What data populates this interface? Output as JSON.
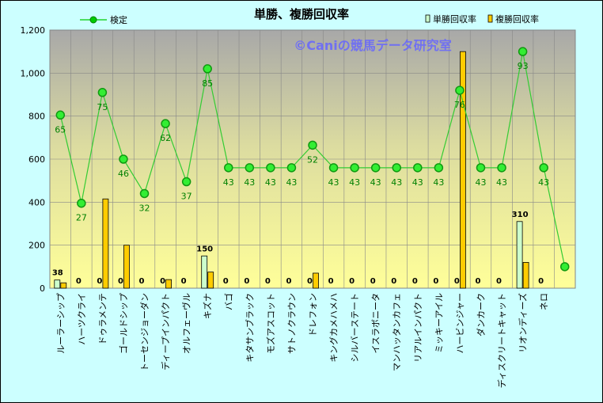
{
  "chart_data": {
    "type": "bar",
    "title": "単勝、複勝回収率",
    "watermark": "©Caniの競馬データ研究室",
    "ylim": [
      0,
      1200
    ],
    "yticks": [
      "0",
      "200",
      "400",
      "600",
      "800",
      "1,000",
      "1,200"
    ],
    "ytick_values": [
      0,
      200,
      400,
      600,
      800,
      1000,
      1200
    ],
    "grid": true,
    "legend_position": "top",
    "categories": [
      "ルーラーシップ",
      "ハーツクライ",
      "ドゥラメンテ",
      "ゴールドシップ",
      "トーセンジョーダン",
      "ディープインパクト",
      "オルフェーヴル",
      "キズナ",
      "バゴ",
      "キタサンブラック",
      "モズアスコット",
      "サトノクラウン",
      "ドレフォン",
      "キングカメハメハ",
      "シルバーステート",
      "イスラボニータ",
      "マンハッタンカフェ",
      "リアルインパクト",
      "ミッキーアイル",
      "ハービンジャー",
      "ダンカーク",
      "ディスクリートキャット",
      "リオンディーズ",
      "ネロ",
      ""
    ],
    "series": [
      {
        "name": "単勝回収率",
        "kind": "bar",
        "color": "#ccffcc",
        "values": [
          38,
          0,
          0,
          0,
          0,
          0,
          0,
          150,
          0,
          0,
          0,
          0,
          0,
          0,
          0,
          0,
          0,
          0,
          0,
          0,
          0,
          0,
          310,
          0,
          null
        ],
        "labels": [
          "38",
          "0",
          "0",
          "0",
          "0",
          "0",
          "0",
          "150",
          "0",
          "0",
          "0",
          "0",
          "0",
          "0",
          "0",
          "0",
          "0",
          "0",
          "0",
          "0",
          "0",
          "0",
          "310",
          "0",
          ""
        ]
      },
      {
        "name": "複勝回収率",
        "kind": "bar",
        "color": "#ffcc00",
        "values": [
          25,
          0,
          415,
          200,
          0,
          40,
          0,
          75,
          0,
          0,
          0,
          0,
          70,
          0,
          0,
          0,
          0,
          0,
          0,
          1100,
          0,
          0,
          120,
          0,
          null
        ]
      },
      {
        "name": "検定",
        "kind": "line",
        "color": "#00cc00",
        "values": [
          805,
          395,
          910,
          600,
          440,
          765,
          495,
          1020,
          560,
          560,
          560,
          560,
          665,
          560,
          560,
          560,
          560,
          560,
          560,
          920,
          560,
          560,
          1100,
          560,
          100
        ],
        "labels": [
          "65",
          "27",
          "75",
          "46",
          "32",
          "62",
          "37",
          "85",
          "43",
          "43",
          "43",
          "43",
          "52",
          "43",
          "43",
          "43",
          "43",
          "43",
          "43",
          "76",
          "43",
          "43",
          "93",
          "43",
          ""
        ]
      }
    ]
  }
}
